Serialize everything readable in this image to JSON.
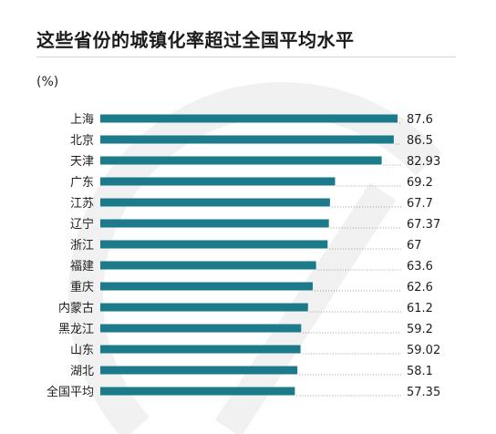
{
  "title": "这些省份的城镇化率超过全国平均水平",
  "unit": "(%)",
  "colors": {
    "bar": "#1c7a8a",
    "dotted_line": "#9a9a9a",
    "watermark": "#f1f1f1"
  },
  "chart_data": {
    "type": "bar",
    "orientation": "horizontal",
    "title": "这些省份的城镇化率超过全国平均水平",
    "ylabel": "(%)",
    "categories": [
      "上海",
      "北京",
      "天津",
      "广东",
      "江苏",
      "辽宁",
      "浙江",
      "福建",
      "重庆",
      "内蒙古",
      "黑龙江",
      "山东",
      "湖北",
      "全国平均"
    ],
    "values": [
      87.6,
      86.5,
      82.93,
      69.2,
      67.7,
      67.37,
      67,
      63.6,
      62.6,
      61.2,
      59.2,
      59.02,
      58.1,
      57.35
    ],
    "value_labels": [
      "87.6",
      "86.5",
      "82.93",
      "69.2",
      "67.7",
      "67.37",
      "67",
      "63.6",
      "62.6",
      "61.2",
      "59.2",
      "59.02",
      "58.1",
      "57.35"
    ],
    "grid": false,
    "legend": "none"
  }
}
